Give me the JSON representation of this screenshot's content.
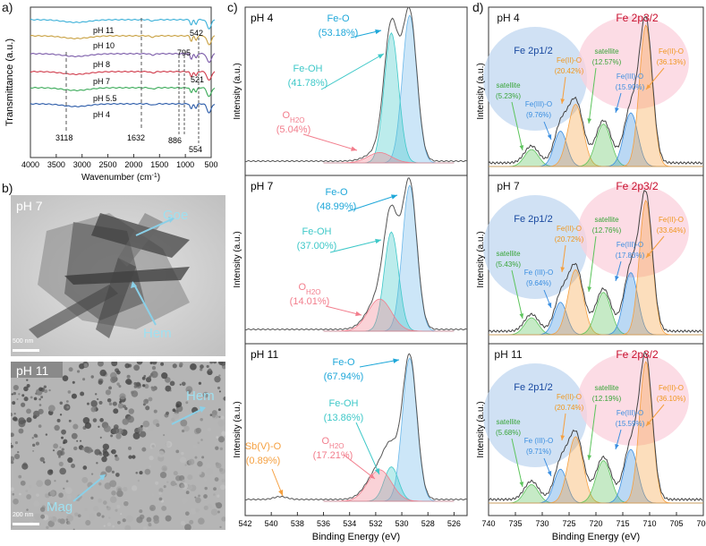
{
  "panel_labels": {
    "a": "a)",
    "b": "b)",
    "c": "c)",
    "d": "d)"
  },
  "colors": {
    "teal": "#3ec8c8",
    "pink": "#f27d8c",
    "orange": "#f5a040",
    "green": "#5cc45c",
    "blue": "#3a8ee0",
    "feo_text": "#1ea7d9",
    "fe2p_text": "#1a4aa0",
    "fe2p32_text": "#c8102e",
    "blue_circle": "#bcd4ef",
    "pink_circle": "#fbd0dc"
  },
  "panel_a": {
    "xlabel": "Wavenumber (cm",
    "xlabel_sup": "-1",
    "xlabel_end": ")",
    "ylabel": "Transmittance (a.u.)",
    "xticks": [
      "4000",
      "3500",
      "3000",
      "2500",
      "2000",
      "1500",
      "1000",
      "500"
    ],
    "curve_labels": [
      "pH 11",
      "pH 10",
      "pH 8",
      "pH 7",
      "pH 5.5",
      "pH 4"
    ],
    "curve_colors": [
      "#3bb0d8",
      "#c8a040",
      "#7a5aa8",
      "#d03a4a",
      "#3aaa58",
      "#2a5aa8"
    ],
    "annotations": [
      "3118",
      "1632",
      "886",
      "795",
      "542",
      "521",
      "554"
    ]
  },
  "panel_b": {
    "top": {
      "ph": "pH 7",
      "labels": [
        "Goe",
        "Hem"
      ],
      "scale": "500 nm"
    },
    "bottom": {
      "ph": "pH 11",
      "labels": [
        "Hem",
        "Mag"
      ],
      "scale": "200 nm"
    }
  },
  "panel_c": {
    "xlabel": "Binding Energy (eV)",
    "ylabel": "Intensity (a.u.)",
    "xticks": [
      "542",
      "540",
      "538",
      "536",
      "534",
      "532",
      "530",
      "528",
      "526"
    ],
    "subpanels": [
      {
        "ph": "pH 4",
        "feo": "Fe-O",
        "feo_pct": "(53.18%)",
        "feoh": "Fe-OH",
        "feoh_pct": "(41.78%)",
        "oh2o": "O",
        "oh2o_sub": "H2O",
        "oh2o_pct": "(5.04%)"
      },
      {
        "ph": "pH 7",
        "feo": "Fe-O",
        "feo_pct": "(48.99%)",
        "feoh": "Fe-OH",
        "feoh_pct": "(37.00%)",
        "oh2o": "O",
        "oh2o_sub": "H2O",
        "oh2o_pct": "(14.01%)"
      },
      {
        "ph": "pH 11",
        "feo": "Fe-O",
        "feo_pct": "(67.94%)",
        "feoh": "Fe-OH",
        "feoh_pct": "(13.86%)",
        "oh2o": "O",
        "oh2o_sub": "H2O",
        "oh2o_pct": "(17.21%)",
        "sb": "Sb(V)-O",
        "sb_pct": "(0.89%)"
      }
    ]
  },
  "panel_d": {
    "xlabel": "Binding Energy (eV)",
    "ylabel": "Intensity (a.u.)",
    "xticks": [
      "740",
      "735",
      "730",
      "725",
      "720",
      "715",
      "710",
      "705",
      "700"
    ],
    "subpanels": [
      {
        "ph": "pH 4",
        "fe12": "Fe 2p1/2",
        "fe32": "Fe 2p3/2",
        "sat1": "satellite",
        "sat1_pct": "(5.23%)",
        "fe3_1": "Fe(III)-O",
        "fe3_1_pct": "(9.76%)",
        "fe2_1": "Fe(II)-O",
        "fe2_1_pct": "(20.42%)",
        "sat2": "satellite",
        "sat2_pct": "(12.57%)",
        "fe3_2": "Fe(III)-O",
        "fe3_2_pct": "(15.90%)",
        "fe2_2": "Fe(II)-O",
        "fe2_2_pct": "(36.13%)"
      },
      {
        "ph": "pH 7",
        "fe12": "Fe 2p1/2",
        "fe32": "Fe 2p3/2",
        "sat1": "satellite",
        "sat1_pct": "(5.43%)",
        "fe3_1": "Fe (III)-O",
        "fe3_1_pct": "(9.64%)",
        "fe2_1": "Fe(II)-O",
        "fe2_1_pct": "(20.72%)",
        "sat2": "satellite",
        "sat2_pct": "(12.76%)",
        "fe3_2": "Fe(III)-O",
        "fe3_2_pct": "(17.83%)",
        "fe2_2": "Fe(II)-O",
        "fe2_2_pct": "(33.64%)"
      },
      {
        "ph": "pH 11",
        "fe12": "Fe 2p1/2",
        "fe32": "Fe 2p3/2",
        "sat1": "satellite",
        "sat1_pct": "(5.68%)",
        "fe3_1": "Fe (III)-O",
        "fe3_1_pct": "(9.71%)",
        "fe2_1": "Fe(II)-O",
        "fe2_1_pct": "(20.74%)",
        "sat2": "satellite",
        "sat2_pct": "(12.19%)",
        "fe3_2": "Fe(III)-O",
        "fe3_2_pct": "(15.59%)",
        "fe2_2": "Fe(II)-O",
        "fe2_2_pct": "(36.10%)"
      }
    ]
  },
  "chart_data": [
    {
      "type": "line",
      "panel": "a",
      "xlabel": "Wavenumber (cm-1)",
      "ylabel": "Transmittance (a.u.)",
      "xlim": [
        4000,
        500
      ],
      "series": [
        {
          "name": "pH 11"
        },
        {
          "name": "pH 10"
        },
        {
          "name": "pH 8"
        },
        {
          "name": "pH 7"
        },
        {
          "name": "pH 5.5"
        },
        {
          "name": "pH 4"
        }
      ],
      "annotations": [
        3118,
        1632,
        886,
        795,
        542,
        521,
        554
      ]
    },
    {
      "type": "line",
      "panel": "c",
      "xlabel": "Binding Energy (eV)",
      "ylabel": "Intensity (a.u.)",
      "xlim": [
        542,
        525
      ],
      "peaks": {
        "Fe-O": 529.6,
        "Fe-OH": 530.8,
        "OH2O": 532.3,
        "Sb(V)-O": 539.3
      },
      "percentages": {
        "pH 4": [
          53.18,
          41.78,
          5.04
        ],
        "pH 7": [
          48.99,
          37.0,
          14.01
        ],
        "pH 11": [
          67.94,
          13.86,
          17.21,
          0.89
        ]
      }
    },
    {
      "type": "line",
      "panel": "d",
      "xlabel": "Binding Energy (eV)",
      "ylabel": "Intensity (a.u.)",
      "xlim": [
        740,
        700
      ],
      "peaks": {
        "satellite_1": 732.4,
        "Fe(III)-O_1": 726.8,
        "Fe(II)-O_1": 723.8,
        "satellite_2": 718.6,
        "Fe(III)-O_2": 713.5,
        "Fe(II)-O_2": 710.8
      },
      "percentages": {
        "pH 4": [
          5.23,
          9.76,
          20.42,
          12.57,
          15.9,
          36.13
        ],
        "pH 7": [
          5.43,
          9.64,
          20.72,
          12.76,
          17.83,
          33.64
        ],
        "pH 11": [
          5.68,
          9.71,
          20.74,
          12.19,
          15.59,
          36.1
        ]
      }
    }
  ]
}
